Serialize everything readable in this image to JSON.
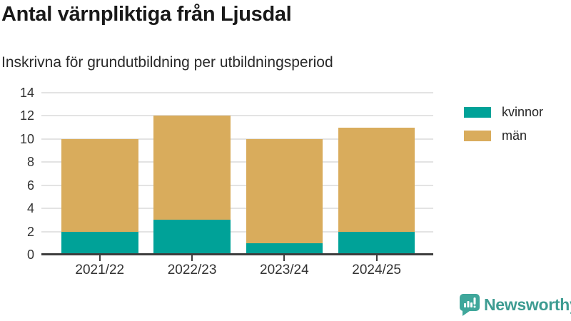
{
  "header": {
    "title": "Antal värnpliktiga från Ljusdal",
    "subtitle": "Inskrivna för grundutbildning per utbildningsperiod"
  },
  "chart_data": {
    "type": "bar",
    "stacked": true,
    "title": "Antal värnpliktiga från Ljusdal",
    "subtitle": "Inskrivna för grundutbildning per utbildningsperiod",
    "categories": [
      "2021/22",
      "2022/23",
      "2023/24",
      "2024/25"
    ],
    "series": [
      {
        "name": "kvinnor",
        "color": "#00A298",
        "values": [
          2,
          3,
          1,
          2
        ]
      },
      {
        "name": "män",
        "color": "#D9AC5C",
        "values": [
          8,
          9,
          9,
          9
        ]
      }
    ],
    "stacked_totals": [
      10,
      12,
      10,
      11
    ],
    "xlabel": "",
    "ylabel": "",
    "ylim": [
      0,
      14
    ],
    "yticks": [
      0,
      2,
      4,
      6,
      8,
      10,
      12,
      14
    ],
    "grid": "horizontal",
    "legend_position": "right"
  },
  "colors": {
    "background": "#FFFFFF",
    "axis_line": "#3D3D3D",
    "gridline": "#E3E3E3",
    "tick_label": "#333333",
    "title_text": "#191919",
    "brand_teal": "#3E9C92"
  },
  "footer": {
    "brand": "Newsworthy",
    "logo_icon": "speech-bubble-bar-chart-icon"
  }
}
